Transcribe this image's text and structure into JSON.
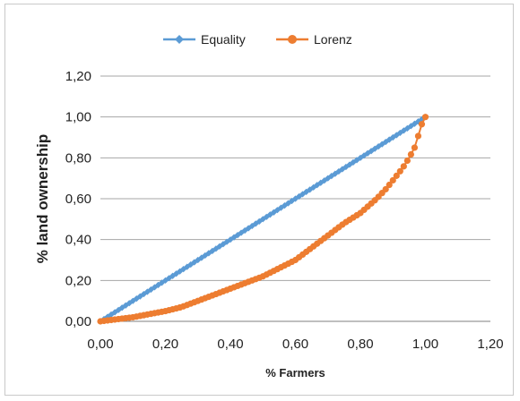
{
  "chart_data": {
    "type": "scatter",
    "title": "",
    "xlabel": "% Farmers",
    "ylabel": "% land ownership",
    "xlim": [
      0,
      1.2
    ],
    "ylim": [
      0,
      1.2
    ],
    "x_ticks": [
      "0,00",
      "0,20",
      "0,40",
      "0,60",
      "0,80",
      "1,00",
      "1,20"
    ],
    "y_ticks": [
      "0,00",
      "0,20",
      "0,40",
      "0,60",
      "0,80",
      "1,00",
      "1,20"
    ],
    "grid": "horizontal",
    "legend_position": "top",
    "series": [
      {
        "name": "Equality",
        "color": "#5b9bd5",
        "marker": "diamond",
        "x": [
          0,
          0.1,
          0.2,
          0.3,
          0.4,
          0.5,
          0.6,
          0.7,
          0.8,
          0.9,
          1.0
        ],
        "y": [
          0,
          0.1,
          0.2,
          0.3,
          0.4,
          0.5,
          0.6,
          0.7,
          0.8,
          0.9,
          1.0
        ]
      },
      {
        "name": "Lorenz",
        "color": "#ed7d31",
        "marker": "circle",
        "x": [
          0,
          0.05,
          0.1,
          0.15,
          0.2,
          0.25,
          0.3,
          0.35,
          0.4,
          0.45,
          0.5,
          0.55,
          0.6,
          0.65,
          0.7,
          0.75,
          0.8,
          0.85,
          0.88,
          0.9,
          0.93,
          0.95,
          0.97,
          0.98,
          0.99,
          1.0
        ],
        "y": [
          0,
          0.01,
          0.02,
          0.035,
          0.05,
          0.07,
          0.1,
          0.13,
          0.16,
          0.19,
          0.22,
          0.26,
          0.3,
          0.36,
          0.42,
          0.48,
          0.53,
          0.6,
          0.65,
          0.69,
          0.75,
          0.8,
          0.86,
          0.92,
          0.97,
          1.0
        ]
      }
    ]
  }
}
